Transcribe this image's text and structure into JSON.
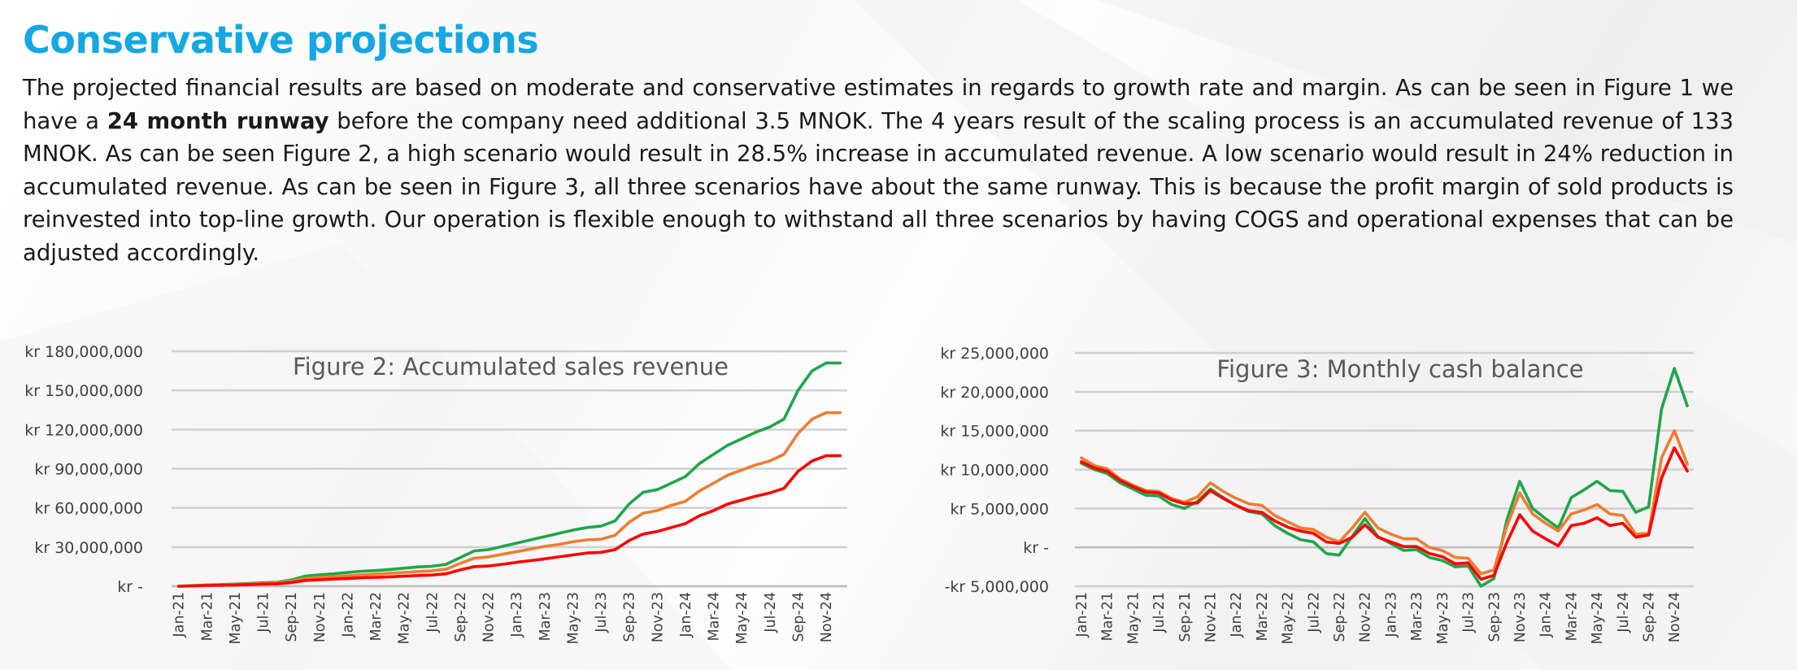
{
  "page": {
    "title": "Conservative projections",
    "paragraph": {
      "part1": "The projected financial results are based on moderate and conservative estimates in regards to growth rate and margin. As can be seen in Figure 1 we have a ",
      "bold": "24 month runway",
      "part2": " before the company need additional 3.5 MNOK. The 4 years result of the scaling process is an accumulated revenue of 133 MNOK. As can be seen Figure 2, a high scenario would result in 28.5% increase in accumulated revenue. A low scenario would result in 24% reduction in accumulated revenue. As can be seen in Figure 3, all three scenarios have about the same runway. This is because the profit margin of sold products is reinvested into top-line growth. Our operation is flexible enough to withstand all three scenarios by having COGS and operational expenses that can be adjusted accordingly."
    }
  },
  "chart_data": [
    {
      "type": "line",
      "title": "Figure 2: Accumulated sales revenue",
      "ylim": [
        0,
        180000000
      ],
      "yticks": [
        {
          "value": 180000000,
          "label": "kr 180,000,000"
        },
        {
          "value": 150000000,
          "label": "kr 150,000,000"
        },
        {
          "value": 120000000,
          "label": "kr 120,000,000"
        },
        {
          "value": 90000000,
          "label": "kr 90,000,000"
        },
        {
          "value": 60000000,
          "label": "kr 60,000,000"
        },
        {
          "value": 30000000,
          "label": "kr 30,000,000"
        },
        {
          "value": 0,
          "label": "kr -"
        }
      ],
      "grid": true,
      "x_label_every": 2,
      "x": [
        "Jan-21",
        "Feb-21",
        "Mar-21",
        "Apr-21",
        "May-21",
        "Jun-21",
        "Jul-21",
        "Aug-21",
        "Sep-21",
        "Oct-21",
        "Nov-21",
        "Dec-21",
        "Jan-22",
        "Feb-22",
        "Mar-22",
        "Apr-22",
        "May-22",
        "Jun-22",
        "Jul-22",
        "Aug-22",
        "Sep-22",
        "Oct-22",
        "Nov-22",
        "Dec-22",
        "Jan-23",
        "Feb-23",
        "Mar-23",
        "Apr-23",
        "May-23",
        "Jun-23",
        "Jul-23",
        "Aug-23",
        "Sep-23",
        "Oct-23",
        "Nov-23",
        "Dec-23",
        "Jan-24",
        "Feb-24",
        "Mar-24",
        "Apr-24",
        "May-24",
        "Jun-24",
        "Jul-24",
        "Aug-24",
        "Sep-24",
        "Oct-24",
        "Nov-24",
        "Dec-24"
      ],
      "series": [
        {
          "color": "#1FA64A",
          "values": [
            0,
            500000,
            1000000,
            1300000,
            1700000,
            2200000,
            2700000,
            3000000,
            4800000,
            7800000,
            8800000,
            9500000,
            10500000,
            11500000,
            12000000,
            12800000,
            13800000,
            14800000,
            15300000,
            16800000,
            22000000,
            27000000,
            28000000,
            30500000,
            33000000,
            35500000,
            38000000,
            40500000,
            43000000,
            45000000,
            46000000,
            50000000,
            63000000,
            72000000,
            74000000,
            79000000,
            84000000,
            94000000,
            101000000,
            108000000,
            113000000,
            118000000,
            122000000,
            128000000,
            150000000,
            165000000,
            171000000,
            171000000
          ]
        },
        {
          "color": "#ED7D31",
          "values": [
            0,
            400000,
            800000,
            1100000,
            1400000,
            1800000,
            2200000,
            2500000,
            3800000,
            6000000,
            6700000,
            7300000,
            8000000,
            8800000,
            9300000,
            9900000,
            10500000,
            11300000,
            11800000,
            13000000,
            17500000,
            21500000,
            22500000,
            24500000,
            26500000,
            28500000,
            30500000,
            32000000,
            34000000,
            35500000,
            36000000,
            39000000,
            49000000,
            56000000,
            58000000,
            62000000,
            65000000,
            73000000,
            79000000,
            85000000,
            89000000,
            93000000,
            96000000,
            101000000,
            117000000,
            128000000,
            133000000,
            133000000
          ]
        },
        {
          "color": "#FF0000",
          "values": [
            0,
            300000,
            600000,
            800000,
            1000000,
            1300000,
            1600000,
            1800000,
            2800000,
            4500000,
            5000000,
            5500000,
            6000000,
            6500000,
            6800000,
            7200000,
            7700000,
            8200000,
            8600000,
            9500000,
            12500000,
            15000000,
            15500000,
            16800000,
            18300000,
            19600000,
            21000000,
            22500000,
            24000000,
            25500000,
            26000000,
            28000000,
            35000000,
            40000000,
            42000000,
            45000000,
            48000000,
            54000000,
            58000000,
            63000000,
            66000000,
            69000000,
            71500000,
            75000000,
            88000000,
            96000000,
            100000000,
            100000000
          ]
        }
      ]
    },
    {
      "type": "line",
      "title": "Figure 3: Monthly cash balance",
      "ylim": [
        -5000000,
        25000000
      ],
      "yticks": [
        {
          "value": 25000000,
          "label": "kr 25,000,000"
        },
        {
          "value": 20000000,
          "label": "kr 20,000,000"
        },
        {
          "value": 15000000,
          "label": "kr 15,000,000"
        },
        {
          "value": 10000000,
          "label": "kr 10,000,000"
        },
        {
          "value": 5000000,
          "label": "kr 5,000,000"
        },
        {
          "value": 0,
          "label": "kr -"
        },
        {
          "value": -5000000,
          "label": "-kr 5,000,000"
        }
      ],
      "grid": true,
      "x_label_every": 2,
      "x": [
        "Jan-21",
        "Feb-21",
        "Mar-21",
        "Apr-21",
        "May-21",
        "Jun-21",
        "Jul-21",
        "Aug-21",
        "Sep-21",
        "Oct-21",
        "Nov-21",
        "Dec-21",
        "Jan-22",
        "Feb-22",
        "Mar-22",
        "Apr-22",
        "May-22",
        "Jun-22",
        "Jul-22",
        "Aug-22",
        "Sep-22",
        "Oct-22",
        "Nov-22",
        "Dec-22",
        "Jan-23",
        "Feb-23",
        "Mar-23",
        "Apr-23",
        "May-23",
        "Jun-23",
        "Jul-23",
        "Aug-23",
        "Sep-23",
        "Oct-23",
        "Nov-23",
        "Dec-23",
        "Jan-24",
        "Feb-24",
        "Mar-24",
        "Apr-24",
        "May-24",
        "Jun-24",
        "Jul-24",
        "Aug-24",
        "Sep-24",
        "Oct-24",
        "Nov-24",
        "Dec-24"
      ],
      "series": [
        {
          "color": "#1FA64A",
          "values": [
            10800000,
            10000000,
            9500000,
            8300000,
            7500000,
            6700000,
            6600000,
            5500000,
            5000000,
            5900000,
            7500000,
            6400000,
            5400000,
            4600000,
            4300000,
            2800000,
            1800000,
            1000000,
            700000,
            -800000,
            -1000000,
            1400000,
            3700000,
            1400000,
            500000,
            -400000,
            -300000,
            -1300000,
            -1700000,
            -2500000,
            -2400000,
            -5000000,
            -4000000,
            3500000,
            8500000,
            5000000,
            3700000,
            2500000,
            6400000,
            7400000,
            8500000,
            7300000,
            7200000,
            4500000,
            5200000,
            17800000,
            23000000,
            18200000
          ]
        },
        {
          "color": "#ED7D31",
          "values": [
            11500000,
            10500000,
            10100000,
            8800000,
            8000000,
            7300000,
            7200000,
            6300000,
            5800000,
            6500000,
            8300000,
            7200000,
            6300000,
            5600000,
            5400000,
            4100000,
            3300000,
            2500000,
            2300000,
            1300000,
            700000,
            2500000,
            4500000,
            2500000,
            1700000,
            1100000,
            1100000,
            0,
            -400000,
            -1300000,
            -1400000,
            -3400000,
            -2900000,
            2700000,
            7000000,
            4300000,
            3100000,
            2100000,
            4300000,
            4800000,
            5500000,
            4300000,
            4100000,
            1700000,
            1800000,
            11500000,
            15000000,
            10700000
          ]
        },
        {
          "color": "#FF0000",
          "values": [
            11000000,
            10200000,
            9800000,
            8600000,
            7800000,
            7100000,
            7000000,
            6100000,
            5600000,
            5700000,
            7300000,
            6300000,
            5400000,
            4700000,
            4500000,
            3400000,
            2600000,
            2100000,
            1800000,
            700000,
            500000,
            1300000,
            2900000,
            1300000,
            700000,
            100000,
            100000,
            -800000,
            -1200000,
            -2100000,
            -2000000,
            -4100000,
            -3600000,
            600000,
            4200000,
            2100000,
            1100000,
            200000,
            2800000,
            3100000,
            3800000,
            2800000,
            3100000,
            1300000,
            1600000,
            8900000,
            12800000,
            9800000
          ]
        }
      ]
    }
  ]
}
